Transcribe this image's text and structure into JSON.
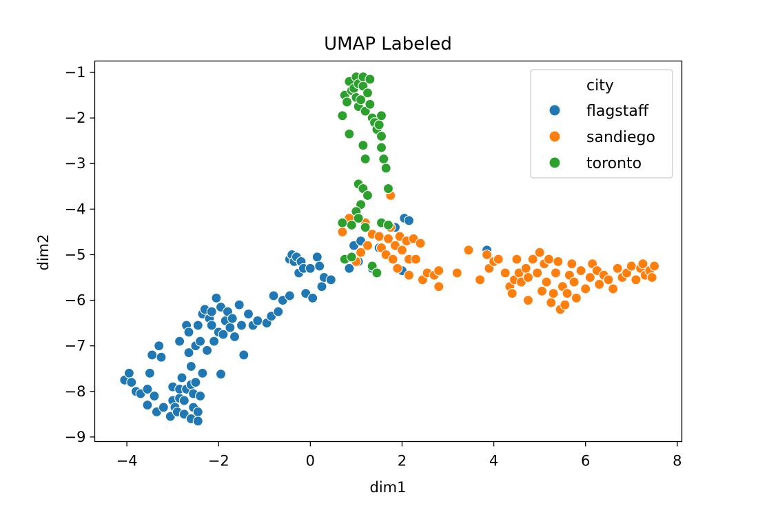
{
  "chart_data": {
    "type": "scatter",
    "title": "UMAP Labeled",
    "xlabel": "dim1",
    "ylabel": "dim2",
    "xlim": [
      -4.7,
      8.1
    ],
    "ylim": [
      -9.1,
      -0.75
    ],
    "xticks": [
      -4,
      -2,
      0,
      2,
      4,
      6,
      8
    ],
    "yticks": [
      -1,
      -2,
      -3,
      -4,
      -5,
      -6,
      -7,
      -8,
      -9
    ],
    "xtick_labels": [
      "−4",
      "−2",
      "0",
      "2",
      "4",
      "6",
      "8"
    ],
    "ytick_labels": [
      "−1",
      "−2",
      "−3",
      "−4",
      "−5",
      "−6",
      "−7",
      "−8",
      "−9"
    ],
    "grid": false,
    "legend": {
      "title": "city",
      "position": "top-right"
    },
    "series": [
      {
        "name": "flagstaff",
        "color": "#1f77b4",
        "points": [
          [
            -4.05,
            -7.75
          ],
          [
            -3.95,
            -7.6
          ],
          [
            -3.9,
            -7.8
          ],
          [
            -3.8,
            -8.0
          ],
          [
            -3.7,
            -8.05
          ],
          [
            -3.55,
            -7.95
          ],
          [
            -3.55,
            -8.3
          ],
          [
            -3.5,
            -7.6
          ],
          [
            -3.45,
            -7.2
          ],
          [
            -3.35,
            -8.45
          ],
          [
            -3.4,
            -8.1
          ],
          [
            -3.3,
            -7.0
          ],
          [
            -3.25,
            -7.25
          ],
          [
            -3.2,
            -8.35
          ],
          [
            -3.05,
            -8.55
          ],
          [
            -3.0,
            -7.9
          ],
          [
            -3.0,
            -8.2
          ],
          [
            -2.95,
            -8.35
          ],
          [
            -2.9,
            -8.45
          ],
          [
            -2.85,
            -8.15
          ],
          [
            -2.85,
            -7.95
          ],
          [
            -2.8,
            -7.7
          ],
          [
            -2.85,
            -6.9
          ],
          [
            -2.75,
            -8.5
          ],
          [
            -2.75,
            -8.2
          ],
          [
            -2.7,
            -7.95
          ],
          [
            -2.7,
            -6.55
          ],
          [
            -2.65,
            -6.7
          ],
          [
            -2.65,
            -7.15
          ],
          [
            -2.6,
            -7.45
          ],
          [
            -2.6,
            -7.85
          ],
          [
            -2.6,
            -8.6
          ],
          [
            -2.55,
            -8.05
          ],
          [
            -2.55,
            -8.35
          ],
          [
            -2.5,
            -7.0
          ],
          [
            -2.5,
            -7.8
          ],
          [
            -2.45,
            -8.45
          ],
          [
            -2.45,
            -6.55
          ],
          [
            -2.4,
            -6.9
          ],
          [
            -2.4,
            -8.1
          ],
          [
            -2.45,
            -8.65
          ],
          [
            -2.35,
            -7.6
          ],
          [
            -2.35,
            -6.3
          ],
          [
            -2.3,
            -6.2
          ],
          [
            -2.25,
            -7.1
          ],
          [
            -2.2,
            -6.4
          ],
          [
            -2.15,
            -6.25
          ],
          [
            -2.15,
            -6.55
          ],
          [
            -2.1,
            -6.9
          ],
          [
            -2.05,
            -5.95
          ],
          [
            -2.0,
            -6.7
          ],
          [
            -1.95,
            -6.15
          ],
          [
            -1.95,
            -7.62
          ],
          [
            -1.9,
            -6.75
          ],
          [
            -1.85,
            -6.45
          ],
          [
            -1.8,
            -6.25
          ],
          [
            -1.75,
            -6.6
          ],
          [
            -1.7,
            -6.4
          ],
          [
            -1.65,
            -6.8
          ],
          [
            -1.55,
            -6.1
          ],
          [
            -1.5,
            -6.55
          ],
          [
            -1.45,
            -7.2
          ],
          [
            -1.35,
            -6.3
          ],
          [
            -1.25,
            -6.55
          ],
          [
            -1.15,
            -6.45
          ],
          [
            -0.95,
            -6.5
          ],
          [
            -0.85,
            -6.35
          ],
          [
            -0.8,
            -5.9
          ],
          [
            -0.7,
            -6.25
          ],
          [
            -0.6,
            -6.0
          ],
          [
            -0.45,
            -5.9
          ],
          [
            -0.45,
            -5.1
          ],
          [
            -0.4,
            -5.0
          ],
          [
            -0.35,
            -5.15
          ],
          [
            -0.3,
            -5.05
          ],
          [
            -0.25,
            -5.4
          ],
          [
            -0.2,
            -5.15
          ],
          [
            -0.15,
            -5.3
          ],
          [
            -0.1,
            -5.85
          ],
          [
            0.0,
            -5.3
          ],
          [
            0.05,
            -5.95
          ],
          [
            0.15,
            -5.05
          ],
          [
            0.2,
            -5.25
          ],
          [
            0.25,
            -5.7
          ],
          [
            0.3,
            -5.5
          ],
          [
            0.45,
            -5.55
          ],
          [
            0.85,
            -5.3
          ],
          [
            0.95,
            -4.8
          ],
          [
            1.05,
            -5.15
          ],
          [
            1.1,
            -4.7
          ],
          [
            1.35,
            -5.3
          ],
          [
            1.5,
            -4.85
          ],
          [
            1.85,
            -4.4
          ],
          [
            2.05,
            -4.2
          ],
          [
            2.15,
            -4.25
          ],
          [
            2.0,
            -5.35
          ],
          [
            3.85,
            -4.9
          ]
        ]
      },
      {
        "name": "sandiego",
        "color": "#ff7f0e",
        "points": [
          [
            0.7,
            -4.5
          ],
          [
            0.85,
            -4.2
          ],
          [
            1.0,
            -5.15
          ],
          [
            1.1,
            -4.95
          ],
          [
            1.2,
            -4.3
          ],
          [
            1.25,
            -4.8
          ],
          [
            1.35,
            -4.55
          ],
          [
            1.5,
            -4.6
          ],
          [
            1.55,
            -4.85
          ],
          [
            1.65,
            -5.0
          ],
          [
            1.7,
            -4.65
          ],
          [
            1.75,
            -3.7
          ],
          [
            1.75,
            -4.4
          ],
          [
            1.8,
            -5.1
          ],
          [
            1.85,
            -4.8
          ],
          [
            1.9,
            -5.3
          ],
          [
            1.95,
            -4.6
          ],
          [
            2.0,
            -4.9
          ],
          [
            2.1,
            -4.7
          ],
          [
            2.15,
            -5.45
          ],
          [
            2.15,
            -5.1
          ],
          [
            2.25,
            -4.65
          ],
          [
            2.3,
            -5.1
          ],
          [
            2.4,
            -4.75
          ],
          [
            2.45,
            -5.55
          ],
          [
            2.55,
            -5.4
          ],
          [
            2.7,
            -5.45
          ],
          [
            2.8,
            -5.35
          ],
          [
            2.8,
            -5.7
          ],
          [
            3.2,
            -5.4
          ],
          [
            3.45,
            -4.9
          ],
          [
            3.7,
            -5.55
          ],
          [
            3.85,
            -5.0
          ],
          [
            3.9,
            -5.3
          ],
          [
            4.0,
            -5.15
          ],
          [
            4.1,
            -5.1
          ],
          [
            4.25,
            -5.4
          ],
          [
            4.35,
            -5.7
          ],
          [
            4.4,
            -5.85
          ],
          [
            4.45,
            -5.55
          ],
          [
            4.5,
            -5.1
          ],
          [
            4.55,
            -5.4
          ],
          [
            4.6,
            -5.6
          ],
          [
            4.7,
            -5.3
          ],
          [
            4.75,
            -5.5
          ],
          [
            4.75,
            -6.0
          ],
          [
            4.85,
            -5.1
          ],
          [
            4.95,
            -5.4
          ],
          [
            5.0,
            -4.95
          ],
          [
            5.05,
            -5.8
          ],
          [
            5.1,
            -5.2
          ],
          [
            5.15,
            -5.6
          ],
          [
            5.2,
            -5.1
          ],
          [
            5.25,
            -6.05
          ],
          [
            5.3,
            -5.85
          ],
          [
            5.35,
            -5.4
          ],
          [
            5.4,
            -5.15
          ],
          [
            5.45,
            -6.2
          ],
          [
            5.5,
            -5.7
          ],
          [
            5.55,
            -6.1
          ],
          [
            5.6,
            -5.85
          ],
          [
            5.65,
            -5.45
          ],
          [
            5.7,
            -5.2
          ],
          [
            5.75,
            -5.6
          ],
          [
            5.8,
            -5.95
          ],
          [
            5.9,
            -5.35
          ],
          [
            6.0,
            -5.75
          ],
          [
            6.1,
            -5.5
          ],
          [
            6.15,
            -5.2
          ],
          [
            6.25,
            -5.35
          ],
          [
            6.3,
            -5.65
          ],
          [
            6.4,
            -5.45
          ],
          [
            6.5,
            -5.55
          ],
          [
            6.6,
            -5.75
          ],
          [
            6.7,
            -5.3
          ],
          [
            6.8,
            -5.5
          ],
          [
            6.9,
            -5.4
          ],
          [
            7.0,
            -5.25
          ],
          [
            7.1,
            -5.55
          ],
          [
            7.2,
            -5.3
          ],
          [
            7.25,
            -5.2
          ],
          [
            7.3,
            -5.45
          ],
          [
            7.4,
            -5.35
          ],
          [
            7.45,
            -5.5
          ],
          [
            7.5,
            -5.25
          ]
        ]
      },
      {
        "name": "toronto",
        "color": "#2ca02c",
        "points": [
          [
            0.7,
            -1.95
          ],
          [
            0.75,
            -1.5
          ],
          [
            0.8,
            -1.65
          ],
          [
            0.85,
            -2.35
          ],
          [
            0.85,
            -1.2
          ],
          [
            0.9,
            -1.4
          ],
          [
            0.95,
            -1.35
          ],
          [
            1.0,
            -1.1
          ],
          [
            1.0,
            -1.55
          ],
          [
            1.05,
            -1.75
          ],
          [
            1.05,
            -1.25
          ],
          [
            1.1,
            -1.6
          ],
          [
            1.15,
            -1.3
          ],
          [
            1.15,
            -1.1
          ],
          [
            1.2,
            -1.85
          ],
          [
            1.25,
            -1.45
          ],
          [
            1.3,
            -1.15
          ],
          [
            1.3,
            -1.7
          ],
          [
            1.35,
            -2.0
          ],
          [
            1.4,
            -2.1
          ],
          [
            1.45,
            -2.25
          ],
          [
            1.5,
            -2.15
          ],
          [
            1.55,
            -2.4
          ],
          [
            1.55,
            -2.65
          ],
          [
            1.6,
            -2.9
          ],
          [
            1.65,
            -3.1
          ],
          [
            1.15,
            -2.6
          ],
          [
            1.2,
            -2.9
          ],
          [
            1.05,
            -3.45
          ],
          [
            1.15,
            -3.55
          ],
          [
            1.1,
            -3.9
          ],
          [
            1.0,
            -4.05
          ],
          [
            1.05,
            -4.2
          ],
          [
            0.9,
            -4.35
          ],
          [
            0.7,
            -4.3
          ],
          [
            0.75,
            -5.1
          ],
          [
            0.9,
            -5.05
          ],
          [
            1.2,
            -4.4
          ],
          [
            1.35,
            -5.25
          ],
          [
            1.45,
            -5.4
          ],
          [
            1.55,
            -4.3
          ],
          [
            1.7,
            -4.35
          ],
          [
            1.7,
            -3.55
          ],
          [
            1.25,
            -3.7
          ],
          [
            1.55,
            -1.95
          ]
        ]
      }
    ]
  }
}
